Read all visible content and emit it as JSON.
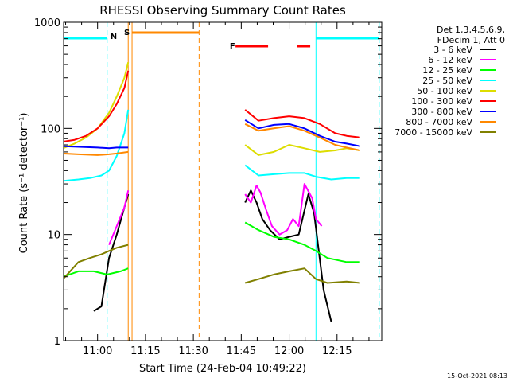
{
  "chart_data": {
    "type": "line",
    "title": "RHESSI Observing Summary Count Rates",
    "xlabel": "Start Time (24-Feb-04 10:49:22)",
    "ylabel": "Count Rate (s⁻¹ detector⁻¹)",
    "yscale": "log",
    "ylim": [
      1,
      1000
    ],
    "xlim": [
      "10:49",
      "12:29"
    ],
    "xticks": [
      "11:00",
      "11:15",
      "11:30",
      "11:45",
      "12:00",
      "12:15"
    ],
    "yticks": [
      "1",
      "10",
      "100",
      "1000"
    ],
    "timestamp": "15-Oct-2021 08:13",
    "legend_header": [
      "Det 1,3,4,5,6,9,",
      "FDecim 1, Att 0"
    ],
    "legend_position": "right",
    "series": [
      {
        "name": "3 - 6 keV",
        "color": "#000000",
        "points": [
          [
            10.98,
            1.9
          ],
          [
            11.02,
            2.1
          ],
          [
            11.06,
            6
          ],
          [
            11.1,
            10
          ],
          [
            11.14,
            18
          ],
          [
            11.16,
            24
          ],
          [
            11.77,
            20
          ],
          [
            11.8,
            26
          ],
          [
            11.83,
            20
          ],
          [
            11.86,
            14
          ],
          [
            11.9,
            11
          ],
          [
            11.95,
            9
          ],
          [
            12.0,
            9.5
          ],
          [
            12.05,
            10
          ],
          [
            12.1,
            24
          ],
          [
            12.13,
            16
          ],
          [
            12.18,
            3
          ],
          [
            12.22,
            1.5
          ]
        ]
      },
      {
        "name": "6 - 12 keV",
        "color": "#ff00ff",
        "points": [
          [
            11.06,
            8
          ],
          [
            11.1,
            12
          ],
          [
            11.14,
            18
          ],
          [
            11.16,
            26
          ],
          [
            11.77,
            24
          ],
          [
            11.8,
            20
          ],
          [
            11.83,
            29
          ],
          [
            11.85,
            25
          ],
          [
            11.88,
            17
          ],
          [
            11.91,
            12
          ],
          [
            11.95,
            10
          ],
          [
            11.99,
            11
          ],
          [
            12.02,
            14
          ],
          [
            12.05,
            12
          ],
          [
            12.08,
            30
          ],
          [
            12.12,
            22
          ],
          [
            12.14,
            14
          ],
          [
            12.17,
            12
          ]
        ]
      },
      {
        "name": "12 - 25 keV",
        "color": "#00ff00",
        "points": [
          [
            10.82,
            4
          ],
          [
            10.9,
            4.5
          ],
          [
            10.98,
            4.5
          ],
          [
            11.05,
            4.2
          ],
          [
            11.12,
            4.5
          ],
          [
            11.16,
            4.8
          ],
          [
            11.77,
            13
          ],
          [
            11.84,
            11
          ],
          [
            11.92,
            9.5
          ],
          [
            12.0,
            9
          ],
          [
            12.08,
            8
          ],
          [
            12.14,
            7
          ],
          [
            12.2,
            6
          ],
          [
            12.3,
            5.5
          ],
          [
            12.37,
            5.5
          ]
        ]
      },
      {
        "name": "25 - 50 keV",
        "color": "#00ffff",
        "points": [
          [
            10.82,
            32
          ],
          [
            10.9,
            33
          ],
          [
            10.96,
            34
          ],
          [
            11.02,
            36
          ],
          [
            11.06,
            40
          ],
          [
            11.1,
            55
          ],
          [
            11.14,
            90
          ],
          [
            11.16,
            150
          ],
          [
            11.77,
            45
          ],
          [
            11.84,
            36
          ],
          [
            11.92,
            37
          ],
          [
            12.0,
            38
          ],
          [
            12.08,
            38
          ],
          [
            12.14,
            35
          ],
          [
            12.22,
            33
          ],
          [
            12.3,
            34
          ],
          [
            12.37,
            34
          ]
        ]
      },
      {
        "name": "50 - 100 keV",
        "color": "#dddd00",
        "points": [
          [
            10.82,
            65
          ],
          [
            10.88,
            72
          ],
          [
            10.94,
            82
          ],
          [
            11.0,
            100
          ],
          [
            11.06,
            140
          ],
          [
            11.1,
            200
          ],
          [
            11.14,
            300
          ],
          [
            11.16,
            420
          ],
          [
            11.77,
            70
          ],
          [
            11.84,
            56
          ],
          [
            11.92,
            60
          ],
          [
            12.0,
            70
          ],
          [
            12.08,
            65
          ],
          [
            12.16,
            60
          ],
          [
            12.24,
            62
          ],
          [
            12.3,
            65
          ],
          [
            12.37,
            62
          ]
        ]
      },
      {
        "name": "100 - 300 keV",
        "color": "#ff0000",
        "points": [
          [
            10.82,
            75
          ],
          [
            10.88,
            78
          ],
          [
            10.94,
            85
          ],
          [
            11.0,
            100
          ],
          [
            11.06,
            130
          ],
          [
            11.1,
            170
          ],
          [
            11.14,
            240
          ],
          [
            11.16,
            350
          ],
          [
            11.77,
            150
          ],
          [
            11.84,
            118
          ],
          [
            11.92,
            125
          ],
          [
            12.0,
            130
          ],
          [
            12.08,
            125
          ],
          [
            12.16,
            110
          ],
          [
            12.24,
            90
          ],
          [
            12.3,
            85
          ],
          [
            12.37,
            82
          ]
        ]
      },
      {
        "name": "300 - 800 keV",
        "color": "#0000ff",
        "points": [
          [
            10.82,
            68
          ],
          [
            11.0,
            66
          ],
          [
            11.06,
            65
          ],
          [
            11.1,
            66
          ],
          [
            11.16,
            66
          ],
          [
            11.77,
            120
          ],
          [
            11.84,
            100
          ],
          [
            11.92,
            108
          ],
          [
            12.0,
            110
          ],
          [
            12.08,
            100
          ],
          [
            12.16,
            85
          ],
          [
            12.24,
            75
          ],
          [
            12.3,
            72
          ],
          [
            12.37,
            68
          ]
        ]
      },
      {
        "name": "800 - 7000 keV",
        "color": "#ff8800",
        "points": [
          [
            10.82,
            58
          ],
          [
            10.9,
            57
          ],
          [
            11.0,
            56
          ],
          [
            11.06,
            57
          ],
          [
            11.1,
            58
          ],
          [
            11.16,
            60
          ],
          [
            11.77,
            110
          ],
          [
            11.84,
            95
          ],
          [
            11.92,
            100
          ],
          [
            12.0,
            105
          ],
          [
            12.08,
            95
          ],
          [
            12.16,
            82
          ],
          [
            12.24,
            70
          ],
          [
            12.3,
            66
          ],
          [
            12.37,
            62
          ]
        ]
      },
      {
        "name": "7000 - 15000 keV",
        "color": "#808000",
        "points": [
          [
            10.82,
            3.8
          ],
          [
            10.9,
            5.5
          ],
          [
            10.96,
            6
          ],
          [
            11.02,
            6.5
          ],
          [
            11.06,
            7
          ],
          [
            11.1,
            7.5
          ],
          [
            11.16,
            8
          ],
          [
            11.77,
            3.5
          ],
          [
            11.84,
            3.8
          ],
          [
            11.92,
            4.2
          ],
          [
            12.0,
            4.5
          ],
          [
            12.08,
            4.8
          ],
          [
            12.14,
            3.8
          ],
          [
            12.2,
            3.5
          ],
          [
            12.3,
            3.6
          ],
          [
            12.37,
            3.5
          ]
        ]
      }
    ],
    "flags": [
      {
        "label": "N",
        "color": "#00ffff"
      },
      {
        "label": "S",
        "color": "#ff8800"
      },
      {
        "label": "F",
        "color": "#ff0000"
      }
    ]
  }
}
